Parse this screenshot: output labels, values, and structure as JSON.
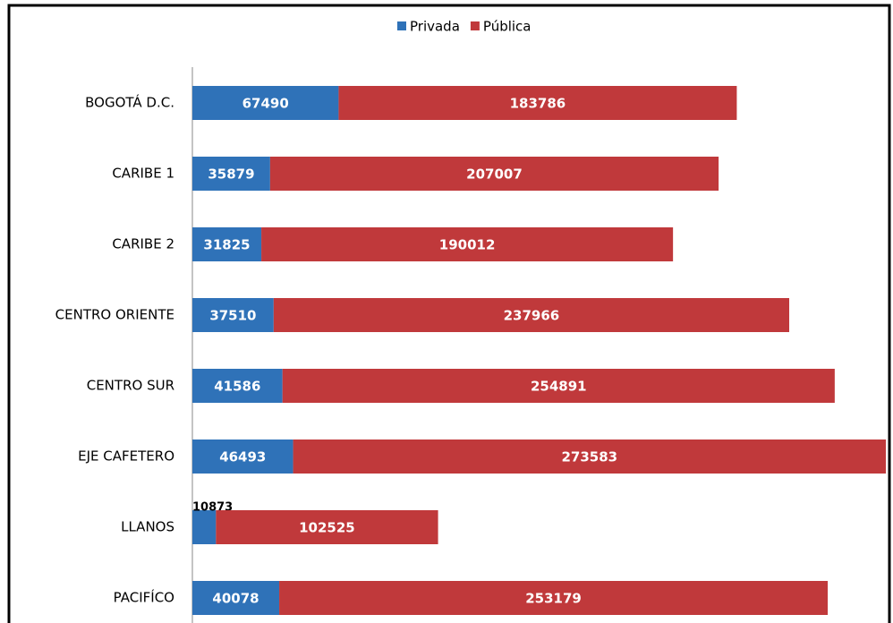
{
  "chart_data": {
    "type": "stacked-bar-horizontal",
    "categories": [
      "BOGOTÁ D.C.",
      "CARIBE 1",
      "CARIBE 2",
      "CENTRO ORIENTE",
      "CENTRO SUR",
      "EJE CAFETERO",
      "LLANOS",
      "PACIFÍCO"
    ],
    "series": [
      {
        "name": "Privada",
        "color": "#2f72b8",
        "values": [
          67490,
          35879,
          31825,
          37510,
          41586,
          46493,
          10873,
          40078
        ]
      },
      {
        "name": "Pública",
        "color": "#c0393b",
        "values": [
          183786,
          207007,
          190012,
          237966,
          254891,
          273583,
          102525,
          253179
        ]
      }
    ],
    "legend": "top"
  }
}
